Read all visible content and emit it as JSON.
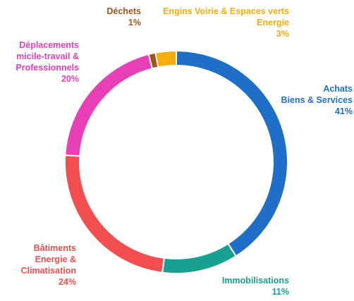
{
  "chart_data": {
    "type": "donut",
    "categories": [
      "Achats\nBiens & Services",
      "Immobilisations",
      "Bâtiments\nEnergie &\nClimatisation",
      "Déplacements\nmicile-travail &\nProfessionnels",
      "Déchets",
      "Engins Voirie & Espaces verts\nEnergie"
    ],
    "values": [
      41,
      11,
      24,
      20,
      1,
      3
    ],
    "value_labels": [
      "41%",
      "11%",
      "24%",
      "20%",
      "1%",
      "3%"
    ],
    "colors": [
      "#1f6fc8",
      "#18a090",
      "#f24d4f",
      "#e83fb6",
      "#a0561a",
      "#f5ad0c"
    ]
  }
}
